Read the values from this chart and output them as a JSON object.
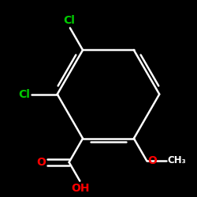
{
  "bg_color": "#000000",
  "bond_color": "#ffffff",
  "atom_colors": {
    "O": "#ff0000",
    "Cl": "#00cc00"
  },
  "bond_width": 1.8,
  "font_size_atom": 10,
  "font_size_small": 8.5
}
